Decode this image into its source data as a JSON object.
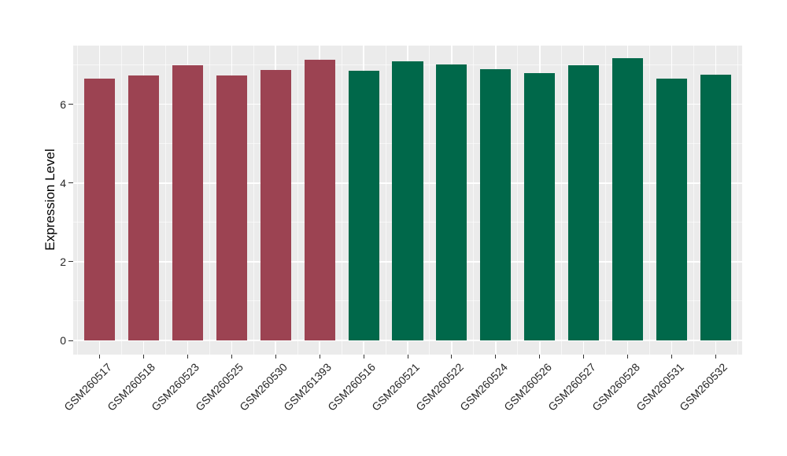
{
  "chart_data": {
    "type": "bar",
    "title": "",
    "xlabel": "",
    "ylabel": "Expression Level",
    "categories": [
      "GSM260517",
      "GSM260518",
      "GSM260523",
      "GSM260525",
      "GSM260530",
      "GSM261393",
      "GSM260516",
      "GSM260521",
      "GSM260522",
      "GSM260524",
      "GSM260526",
      "GSM260527",
      "GSM260528",
      "GSM260531",
      "GSM260532"
    ],
    "values": [
      6.65,
      6.73,
      7.0,
      6.73,
      6.87,
      7.13,
      6.86,
      7.09,
      7.01,
      6.89,
      6.79,
      7.0,
      7.17,
      6.65,
      6.75
    ],
    "bar_groups": [
      "group1",
      "group1",
      "group1",
      "group1",
      "group1",
      "group1",
      "group2",
      "group2",
      "group2",
      "group2",
      "group2",
      "group2",
      "group2",
      "group2",
      "group2"
    ],
    "group_colors": {
      "group1": "#9C4352",
      "group2": "#00684A"
    },
    "yticks": [
      0,
      2,
      4,
      6
    ],
    "yminor": [
      1,
      3,
      5,
      7
    ],
    "ylim": [
      0,
      7.5
    ],
    "x_tick_angle": -45,
    "legend_position": "none",
    "grid": "on",
    "panel_bg": "#EBEBEB",
    "grid_color": "#FFFFFF",
    "tick_color": "#333333",
    "axis_text_color": "#262626",
    "axis_title_color": "#000000"
  }
}
